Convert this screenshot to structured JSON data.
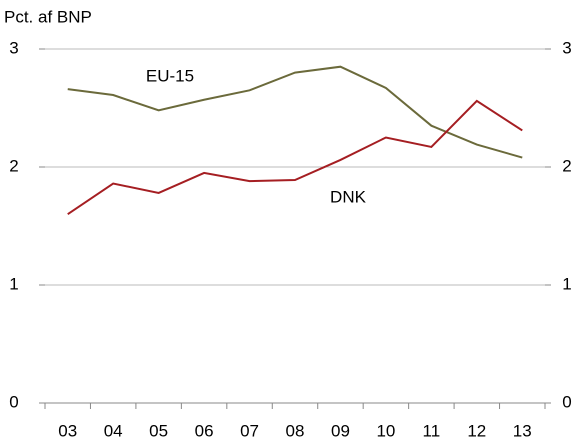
{
  "chart_data": {
    "type": "line",
    "y_label": "Pct. af BNP",
    "categories": [
      "03",
      "04",
      "05",
      "06",
      "07",
      "08",
      "09",
      "10",
      "11",
      "12",
      "13"
    ],
    "series": [
      {
        "name": "EU-15",
        "color": "#6b6a3b",
        "values": [
          2.66,
          2.61,
          2.48,
          2.57,
          2.65,
          2.8,
          2.85,
          2.67,
          2.35,
          2.19,
          2.08
        ]
      },
      {
        "name": "DNK",
        "color": "#a51e22",
        "values": [
          1.6,
          1.86,
          1.78,
          1.95,
          1.88,
          1.89,
          2.06,
          2.25,
          2.17,
          2.56,
          2.31
        ]
      }
    ],
    "ylim": [
      0,
      3
    ],
    "yticks": [
      0,
      1,
      2,
      3
    ],
    "y2lim": [
      0,
      3
    ],
    "y2ticks": [
      0,
      1,
      2,
      3
    ],
    "grid": true
  }
}
